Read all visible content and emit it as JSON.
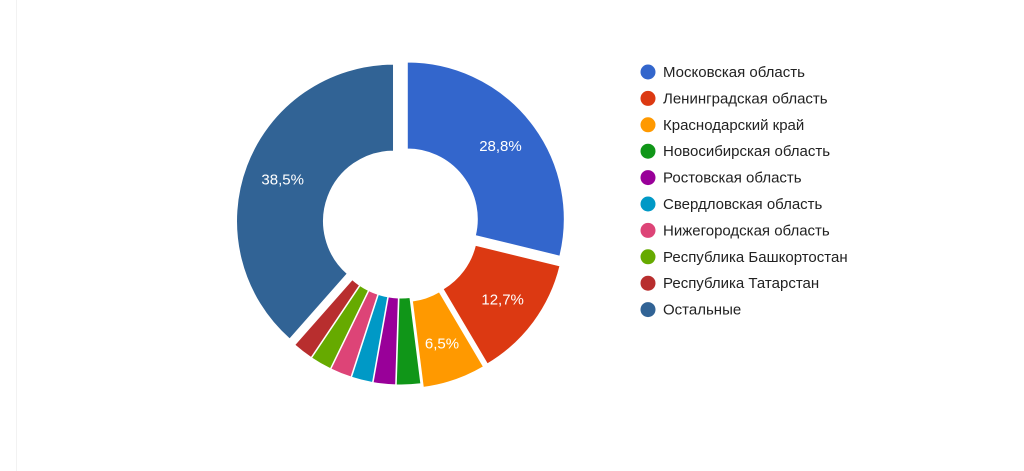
{
  "chart_data": {
    "type": "pie",
    "style": "donut",
    "title": "",
    "legend_position": "right",
    "categories": [
      "Московская область",
      "Ленинградская область",
      "Краснодарский край",
      "Новосибирская область",
      "Ростовская область",
      "Свердловская область",
      "Нижегородская область",
      "Республика Башкортостан",
      "Республика Татарстан",
      "Остальные"
    ],
    "values": [
      28.8,
      12.7,
      6.5,
      2.5,
      2.3,
      2.2,
      2.2,
      2.2,
      2.1,
      38.5
    ],
    "labels": [
      "28,8%",
      "12,7%",
      "6,5%",
      "",
      "",
      "",
      "",
      "",
      "",
      "38,5%"
    ],
    "colors": [
      "#3366cc",
      "#dc3912",
      "#ff9900",
      "#109618",
      "#990099",
      "#0099c6",
      "#dd4477",
      "#66aa00",
      "#b82e2e",
      "#316395"
    ]
  }
}
